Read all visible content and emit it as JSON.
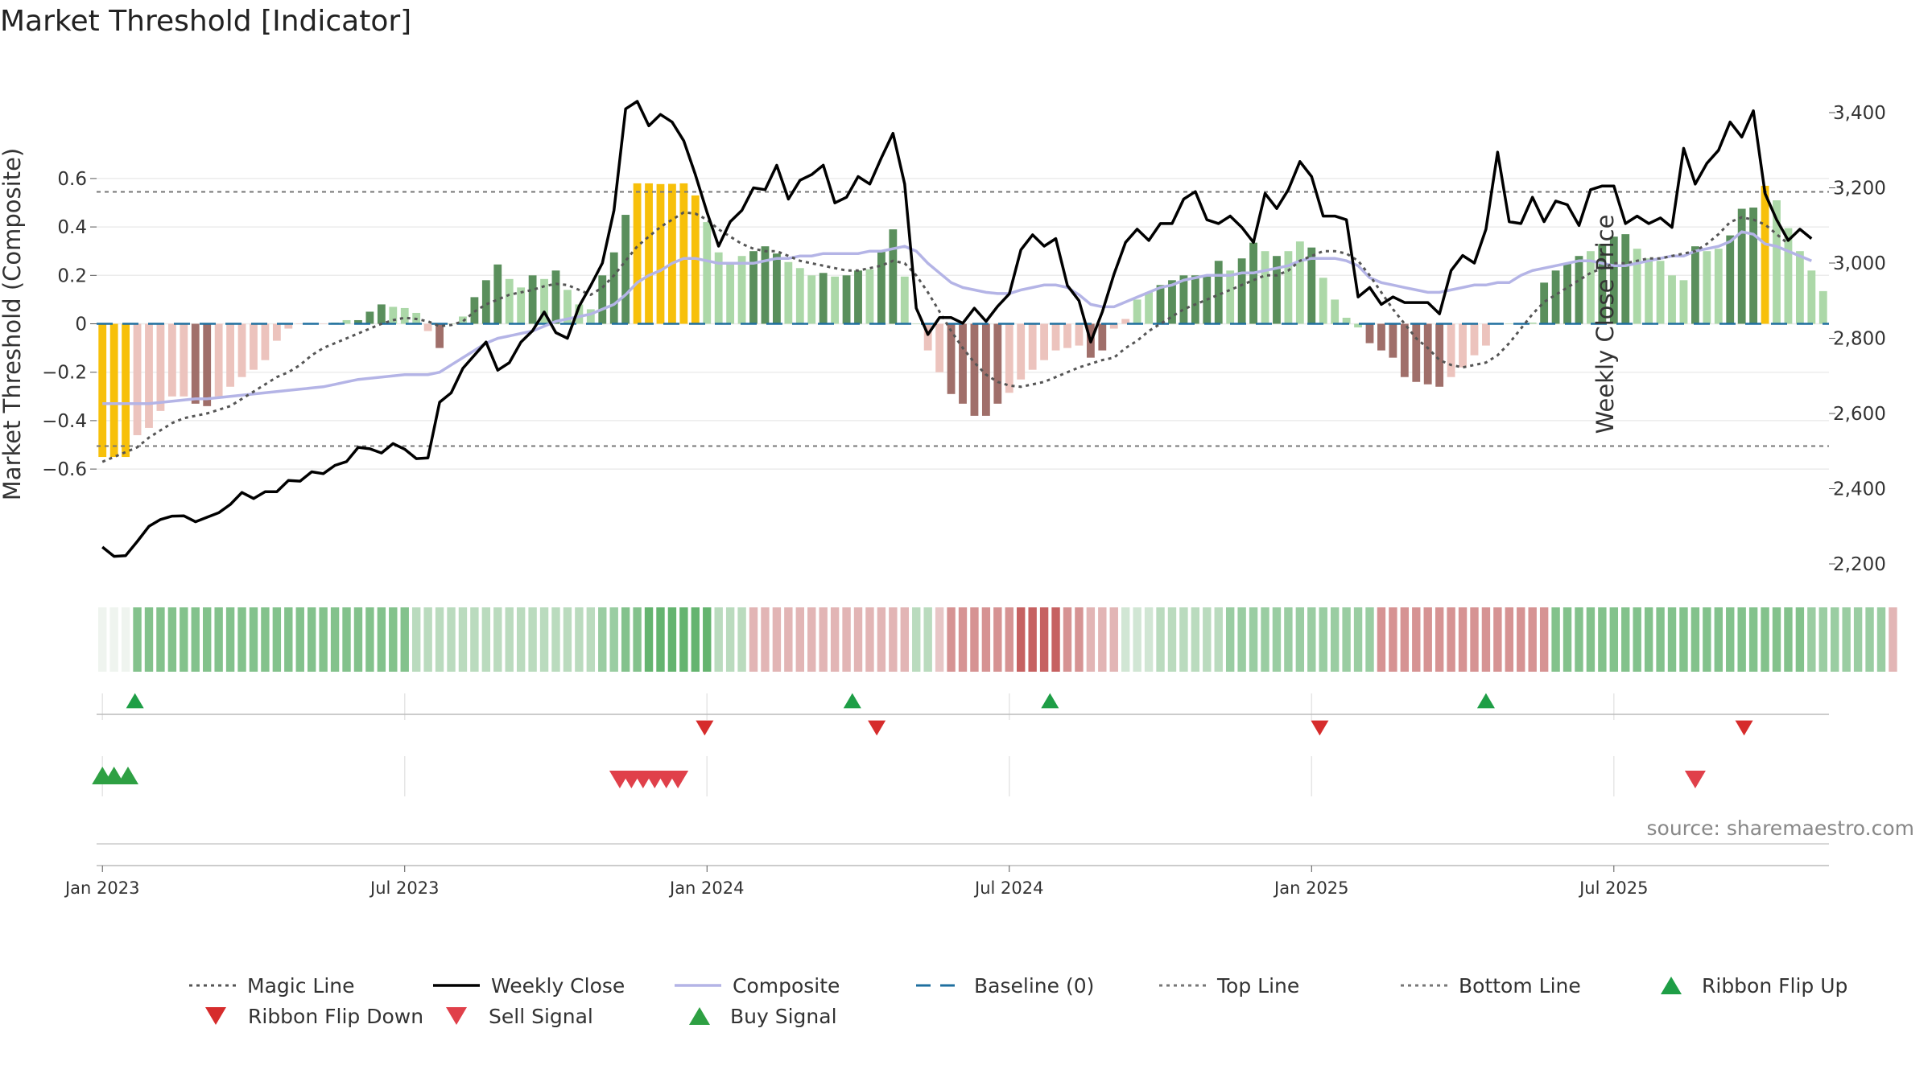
{
  "chart_data": {
    "type": "bar",
    "title": "Market Threshold [Indicator]",
    "ylabel": "Market Threshold (Composite)",
    "y2label": "Weekly Close Price",
    "source": "source: sharemaestro.com",
    "ylim": [
      -0.64,
      0.64
    ],
    "y2lim": [
      2160,
      3480
    ],
    "yticks": [
      {
        "v": 0.6,
        "label": "0.6"
      },
      {
        "v": 0.4,
        "label": "0.4"
      },
      {
        "v": 0.2,
        "label": "0.2"
      },
      {
        "v": 0,
        "label": "0"
      },
      {
        "v": -0.2,
        "label": "−0.2"
      },
      {
        "v": -0.4,
        "label": "−0.4"
      },
      {
        "v": -0.6,
        "label": "−0.6"
      }
    ],
    "y2ticks": [
      {
        "v": 3400,
        "label": "3,400"
      },
      {
        "v": 3200,
        "label": "3,200"
      },
      {
        "v": 3000,
        "label": "3,000"
      },
      {
        "v": 2800,
        "label": "2,800"
      },
      {
        "v": 2600,
        "label": "2,600"
      },
      {
        "v": 2400,
        "label": "2,400"
      },
      {
        "v": 2200,
        "label": "2,200"
      }
    ],
    "xticks": [
      {
        "week": 0,
        "label": "Jan 2023"
      },
      {
        "week": 26,
        "label": "Jul 2023"
      },
      {
        "week": 52,
        "label": "Jan 2024"
      },
      {
        "week": 78,
        "label": "Jul 2024"
      },
      {
        "week": 104,
        "label": "Jan 2025"
      },
      {
        "week": 130,
        "label": "Jul 2025"
      }
    ],
    "top_line": 0.545,
    "bottom_line": -0.505,
    "composite": [
      -0.55,
      -0.55,
      -0.55,
      -0.46,
      -0.43,
      -0.36,
      -0.3,
      -0.3,
      -0.33,
      -0.34,
      -0.3,
      -0.26,
      -0.22,
      -0.19,
      -0.15,
      -0.07,
      -0.02,
      0,
      0,
      0,
      0.005,
      0.015,
      0.015,
      0.05,
      0.08,
      0.07,
      0.065,
      0.045,
      -0.03,
      -0.1,
      0,
      0.03,
      0.11,
      0.18,
      0.245,
      0.185,
      0.15,
      0.2,
      0.185,
      0.22,
      0.14,
      0.08,
      0.06,
      0.2,
      0.295,
      0.45,
      0.58,
      0.58,
      0.577,
      0.578,
      0.58,
      0.53,
      0.42,
      0.295,
      0.25,
      0.28,
      0.3,
      0.32,
      0.29,
      0.255,
      0.23,
      0.2,
      0.21,
      0.195,
      0.2,
      0.22,
      0.225,
      0.3,
      0.39,
      0.195,
      0,
      -0.11,
      -0.2,
      -0.29,
      -0.33,
      -0.38,
      -0.38,
      -0.33,
      -0.285,
      -0.23,
      -0.19,
      -0.15,
      -0.11,
      -0.1,
      -0.09,
      -0.14,
      -0.11,
      -0.02,
      0.02,
      0.1,
      0.13,
      0.16,
      0.18,
      0.2,
      0.2,
      0.2,
      0.26,
      0.22,
      0.27,
      0.335,
      0.3,
      0.28,
      0.3,
      0.34,
      0.315,
      0.19,
      0.1,
      0.025,
      -0.015,
      -0.08,
      -0.11,
      -0.14,
      -0.22,
      -0.24,
      -0.25,
      -0.26,
      -0.22,
      -0.18,
      -0.13,
      -0.09,
      0,
      0,
      0,
      0.005,
      0.17,
      0.22,
      0.25,
      0.28,
      0.3,
      0.33,
      0.36,
      0.37,
      0.31,
      0.27,
      0.26,
      0.2,
      0.18,
      0.32,
      0.3,
      0.31,
      0.365,
      0.475,
      0.48,
      0.57,
      0.51,
      0.395,
      0.3,
      0.22,
      0.135
    ],
    "bar_colors": [
      "gold",
      "gold",
      "gold",
      "pink",
      "pink",
      "pink",
      "pink",
      "pink",
      "brown",
      "brown",
      "pink",
      "pink",
      "pink",
      "pink",
      "pink",
      "pink",
      "pink",
      "pink",
      "pink",
      "pink",
      "lgreen",
      "lgreen",
      "dgreen",
      "dgreen",
      "dgreen",
      "lgreen",
      "lgreen",
      "lgreen",
      "pink",
      "brown",
      "lgreen",
      "lgreen",
      "dgreen",
      "dgreen",
      "dgreen",
      "lgreen",
      "lgreen",
      "dgreen",
      "lgreen",
      "dgreen",
      "lgreen",
      "lgreen",
      "lgreen",
      "dgreen",
      "dgreen",
      "dgreen",
      "gold",
      "gold",
      "gold",
      "gold",
      "gold",
      "gold",
      "lgreen",
      "lgreen",
      "lgreen",
      "lgreen",
      "dgreen",
      "dgreen",
      "dgreen",
      "lgreen",
      "lgreen",
      "lgreen",
      "dgreen",
      "lgreen",
      "dgreen",
      "dgreen",
      "lgreen",
      "dgreen",
      "dgreen",
      "lgreen",
      "lgreen",
      "pink",
      "pink",
      "brown",
      "brown",
      "brown",
      "brown",
      "brown",
      "pink",
      "pink",
      "pink",
      "pink",
      "pink",
      "pink",
      "pink",
      "brown",
      "brown",
      "pink",
      "pink",
      "lgreen",
      "lgreen",
      "dgreen",
      "dgreen",
      "dgreen",
      "dgreen",
      "dgreen",
      "dgreen",
      "lgreen",
      "dgreen",
      "dgreen",
      "lgreen",
      "dgreen",
      "lgreen",
      "lgreen",
      "dgreen",
      "lgreen",
      "lgreen",
      "lgreen",
      "lgreen",
      "brown",
      "brown",
      "brown",
      "brown",
      "brown",
      "brown",
      "brown",
      "pink",
      "pink",
      "pink",
      "pink",
      "pink",
      "lgreen",
      "lgreen",
      "lgreen",
      "dgreen",
      "dgreen",
      "dgreen",
      "dgreen",
      "lgreen",
      "dgreen",
      "dgreen",
      "dgreen",
      "lgreen",
      "lgreen",
      "lgreen",
      "lgreen",
      "lgreen",
      "dgreen",
      "lgreen",
      "lgreen",
      "dgreen",
      "dgreen",
      "dgreen",
      "gold",
      "lgreen",
      "lgreen",
      "lgreen",
      "lgreen",
      "lgreen"
    ],
    "weekly_close": [
      2245,
      2220,
      2222,
      2260,
      2300,
      2318,
      2327,
      2328,
      2312,
      2324,
      2336,
      2358,
      2390,
      2374,
      2392,
      2392,
      2422,
      2420,
      2445,
      2440,
      2462,
      2472,
      2510,
      2506,
      2495,
      2520,
      2505,
      2480,
      2482,
      2630,
      2655,
      2720,
      2755,
      2790,
      2715,
      2735,
      2790,
      2820,
      2870,
      2815,
      2800,
      2885,
      2940,
      3000,
      3140,
      3410,
      3430,
      3365,
      3395,
      3375,
      3325,
      3235,
      3135,
      3045,
      3110,
      3140,
      3200,
      3195,
      3260,
      3170,
      3220,
      3235,
      3260,
      3160,
      3175,
      3230,
      3210,
      3280,
      3345,
      3210,
      2880,
      2810,
      2855,
      2855,
      2840,
      2880,
      2845,
      2885,
      2918,
      3035,
      3075,
      3045,
      3065,
      2940,
      2900,
      2790,
      2870,
      2970,
      3055,
      3090,
      3060,
      3105,
      3105,
      3170,
      3190,
      3115,
      3105,
      3125,
      3095,
      3055,
      3185,
      3145,
      3195,
      3270,
      3230,
      3125,
      3125,
      3115,
      2910,
      2935,
      2890,
      2910,
      2895,
      2895,
      2895,
      2865,
      2980,
      3020,
      3000,
      3090,
      3295,
      3110,
      3105,
      3175,
      3110,
      3165,
      3155,
      3100,
      3195,
      3205,
      3205,
      3105,
      3125,
      3105,
      3120,
      3095,
      3305,
      3210,
      3265,
      3300,
      3375,
      3335,
      3405,
      3185,
      3115,
      3060,
      3090,
      3065
    ],
    "magic_line": [
      -0.57,
      -0.55,
      -0.53,
      -0.51,
      -0.47,
      -0.44,
      -0.41,
      -0.39,
      -0.38,
      -0.37,
      -0.355,
      -0.34,
      -0.31,
      -0.28,
      -0.25,
      -0.22,
      -0.2,
      -0.17,
      -0.13,
      -0.1,
      -0.08,
      -0.06,
      -0.04,
      -0.02,
      0,
      0.015,
      0.025,
      0.02,
      0.01,
      -0.01,
      -0.005,
      0.01,
      0.05,
      0.08,
      0.1,
      0.12,
      0.13,
      0.14,
      0.155,
      0.165,
      0.16,
      0.14,
      0.12,
      0.15,
      0.2,
      0.26,
      0.32,
      0.36,
      0.4,
      0.43,
      0.46,
      0.455,
      0.43,
      0.39,
      0.36,
      0.33,
      0.31,
      0.3,
      0.3,
      0.28,
      0.26,
      0.25,
      0.24,
      0.23,
      0.22,
      0.22,
      0.23,
      0.24,
      0.26,
      0.25,
      0.2,
      0.13,
      0.05,
      -0.03,
      -0.1,
      -0.16,
      -0.21,
      -0.24,
      -0.255,
      -0.26,
      -0.25,
      -0.24,
      -0.22,
      -0.2,
      -0.18,
      -0.165,
      -0.15,
      -0.14,
      -0.1,
      -0.07,
      -0.03,
      0,
      0.03,
      0.06,
      0.08,
      0.1,
      0.12,
      0.14,
      0.16,
      0.18,
      0.2,
      0.2,
      0.22,
      0.26,
      0.28,
      0.3,
      0.3,
      0.29,
      0.26,
      0.2,
      0.13,
      0.06,
      0,
      -0.06,
      -0.1,
      -0.15,
      -0.17,
      -0.18,
      -0.17,
      -0.16,
      -0.13,
      -0.08,
      -0.02,
      0.04,
      0.09,
      0.12,
      0.15,
      0.18,
      0.21,
      0.23,
      0.25,
      0.25,
      0.26,
      0.27,
      0.27,
      0.28,
      0.29,
      0.3,
      0.33,
      0.37,
      0.42,
      0.44,
      0.43,
      0.41,
      0.37,
      0.33
    ],
    "composite_smooth": [
      -0.33,
      -0.33,
      -0.33,
      -0.33,
      -0.33,
      -0.325,
      -0.32,
      -0.315,
      -0.31,
      -0.31,
      -0.305,
      -0.3,
      -0.295,
      -0.29,
      -0.285,
      -0.28,
      -0.275,
      -0.27,
      -0.265,
      -0.26,
      -0.25,
      -0.24,
      -0.23,
      -0.225,
      -0.22,
      -0.215,
      -0.21,
      -0.21,
      -0.21,
      -0.2,
      -0.17,
      -0.14,
      -0.11,
      -0.08,
      -0.06,
      -0.05,
      -0.04,
      -0.03,
      -0.01,
      0.01,
      0.02,
      0.03,
      0.04,
      0.06,
      0.08,
      0.12,
      0.17,
      0.2,
      0.22,
      0.25,
      0.27,
      0.27,
      0.26,
      0.25,
      0.25,
      0.25,
      0.25,
      0.26,
      0.27,
      0.27,
      0.28,
      0.28,
      0.29,
      0.29,
      0.29,
      0.29,
      0.3,
      0.3,
      0.31,
      0.32,
      0.3,
      0.25,
      0.21,
      0.17,
      0.15,
      0.14,
      0.13,
      0.125,
      0.125,
      0.14,
      0.15,
      0.16,
      0.16,
      0.15,
      0.12,
      0.08,
      0.07,
      0.07,
      0.09,
      0.11,
      0.13,
      0.15,
      0.16,
      0.18,
      0.19,
      0.2,
      0.2,
      0.2,
      0.21,
      0.21,
      0.22,
      0.23,
      0.24,
      0.26,
      0.27,
      0.27,
      0.27,
      0.26,
      0.24,
      0.19,
      0.17,
      0.16,
      0.15,
      0.14,
      0.13,
      0.13,
      0.14,
      0.15,
      0.16,
      0.16,
      0.17,
      0.17,
      0.2,
      0.22,
      0.23,
      0.24,
      0.25,
      0.26,
      0.26,
      0.25,
      0.24,
      0.24,
      0.25,
      0.26,
      0.27,
      0.28,
      0.28,
      0.3,
      0.31,
      0.32,
      0.34,
      0.38,
      0.37,
      0.33,
      0.32,
      0.3,
      0.28,
      0.26
    ],
    "ribbon": [
      0.06,
      0.06,
      0.06,
      0.75,
      0.75,
      0.75,
      0.75,
      0.75,
      0.75,
      0.75,
      0.75,
      0.75,
      0.75,
      0.75,
      0.75,
      0.75,
      0.75,
      0.75,
      0.75,
      0.75,
      0.75,
      0.75,
      0.75,
      0.75,
      0.75,
      0.75,
      0.75,
      0.4,
      0.4,
      0.4,
      0.4,
      0.4,
      0.4,
      0.4,
      0.4,
      0.4,
      0.4,
      0.4,
      0.4,
      0.4,
      0.4,
      0.4,
      0.4,
      0.6,
      0.6,
      0.75,
      0.75,
      0.95,
      0.95,
      0.95,
      0.95,
      0.95,
      0.95,
      0.4,
      0.4,
      0.4,
      -0.4,
      -0.4,
      -0.4,
      -0.4,
      -0.4,
      -0.4,
      -0.4,
      -0.4,
      -0.4,
      -0.4,
      -0.4,
      -0.4,
      -0.4,
      -0.4,
      0.4,
      0.4,
      -0.3,
      -0.6,
      -0.6,
      -0.6,
      -0.6,
      -0.6,
      -0.6,
      -0.9,
      -0.9,
      -0.9,
      -0.9,
      -0.6,
      -0.6,
      -0.4,
      -0.4,
      -0.4,
      0.25,
      0.25,
      0.25,
      0.4,
      0.4,
      0.4,
      0.4,
      0.4,
      0.4,
      0.6,
      0.6,
      0.6,
      0.6,
      0.6,
      0.6,
      0.6,
      0.6,
      0.6,
      0.6,
      0.6,
      0.6,
      0.6,
      -0.6,
      -0.6,
      -0.6,
      -0.6,
      -0.6,
      -0.6,
      -0.6,
      -0.6,
      -0.6,
      -0.6,
      -0.6,
      -0.6,
      -0.6,
      -0.6,
      -0.6,
      0.75,
      0.75,
      0.75,
      0.75,
      0.75,
      0.75,
      0.75,
      0.75,
      0.75,
      0.75,
      0.75,
      0.75,
      0.75,
      0.75,
      0.75,
      0.75,
      0.75,
      0.75,
      0.75,
      0.75,
      0.75,
      0.75,
      0.6,
      0.6,
      0.6,
      0.6,
      0.6,
      0.6,
      0.6,
      -0.4
    ],
    "ribbon_flip_up": [
      2.8,
      64.5,
      81.5,
      119
    ],
    "ribbon_flip_down": [
      51.8,
      66.6,
      104.7,
      141.2
    ],
    "sell_signal": [
      44.5,
      45.5,
      46.5,
      47.5,
      48.5,
      49.5,
      137
    ],
    "buy_signal": [
      0,
      1,
      2.2
    ],
    "legend": [
      {
        "kind": "dotline",
        "label": "Magic Line",
        "color": "#555555"
      },
      {
        "kind": "line",
        "label": "Weekly Close",
        "color": "#000000"
      },
      {
        "kind": "line",
        "label": "Composite",
        "color": "#b4b4e6"
      },
      {
        "kind": "dashline",
        "label": "Baseline (0)",
        "color": "#1f6f9f"
      },
      {
        "kind": "dotline",
        "label": "Top Line",
        "color": "#777777"
      },
      {
        "kind": "dotline",
        "label": "Bottom Line",
        "color": "#777777"
      },
      {
        "kind": "tri-up",
        "label": "Ribbon Flip Up",
        "color": "#1e9e46"
      },
      {
        "kind": "tri-down",
        "label": "Ribbon Flip Down",
        "color": "#d62c2c"
      },
      {
        "kind": "tri-down",
        "label": "Sell Signal",
        "color": "#e0404a"
      },
      {
        "kind": "tri-up",
        "label": "Buy Signal",
        "color": "#2ea043"
      }
    ],
    "colors": {
      "gold": "#f7c00a",
      "lgreen": "#acd8a8",
      "dgreen": "#5a8f5c",
      "pink": "#ecc3bd",
      "brown": "#a06f6a"
    }
  }
}
